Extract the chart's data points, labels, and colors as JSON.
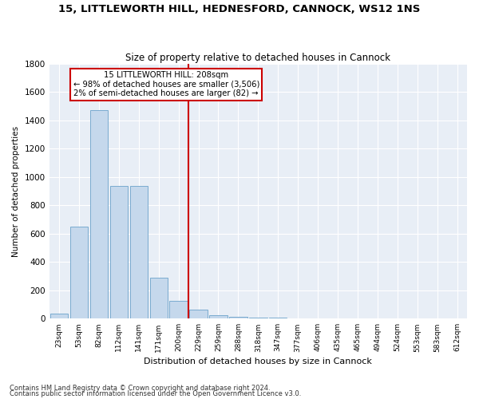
{
  "title": "15, LITTLEWORTH HILL, HEDNESFORD, CANNOCK, WS12 1NS",
  "subtitle": "Size of property relative to detached houses in Cannock",
  "xlabel": "Distribution of detached houses by size in Cannock",
  "ylabel": "Number of detached properties",
  "bin_labels": [
    "23sqm",
    "53sqm",
    "82sqm",
    "112sqm",
    "141sqm",
    "171sqm",
    "200sqm",
    "229sqm",
    "259sqm",
    "288sqm",
    "318sqm",
    "347sqm",
    "377sqm",
    "406sqm",
    "435sqm",
    "465sqm",
    "494sqm",
    "524sqm",
    "553sqm",
    "583sqm",
    "612sqm"
  ],
  "bar_values": [
    35,
    650,
    1470,
    935,
    935,
    290,
    125,
    65,
    25,
    15,
    10,
    5,
    0,
    0,
    0,
    0,
    0,
    0,
    0,
    0,
    0
  ],
  "bar_color": "#c5d8ec",
  "bar_edgecolor": "#7aabcf",
  "bg_color": "#e8eef6",
  "grid_color": "#ffffff",
  "vline_color": "#cc0000",
  "vline_x": 6.5,
  "annotation_lines": [
    "15 LITTLEWORTH HILL: 208sqm",
    "← 98% of detached houses are smaller (3,506)",
    "2% of semi-detached houses are larger (82) →"
  ],
  "annotation_box_color": "#cc0000",
  "ylim": [
    0,
    1800
  ],
  "yticks": [
    0,
    200,
    400,
    600,
    800,
    1000,
    1200,
    1400,
    1600,
    1800
  ],
  "footnote1": "Contains HM Land Registry data © Crown copyright and database right 2024.",
  "footnote2": "Contains public sector information licensed under the Open Government Licence v3.0."
}
